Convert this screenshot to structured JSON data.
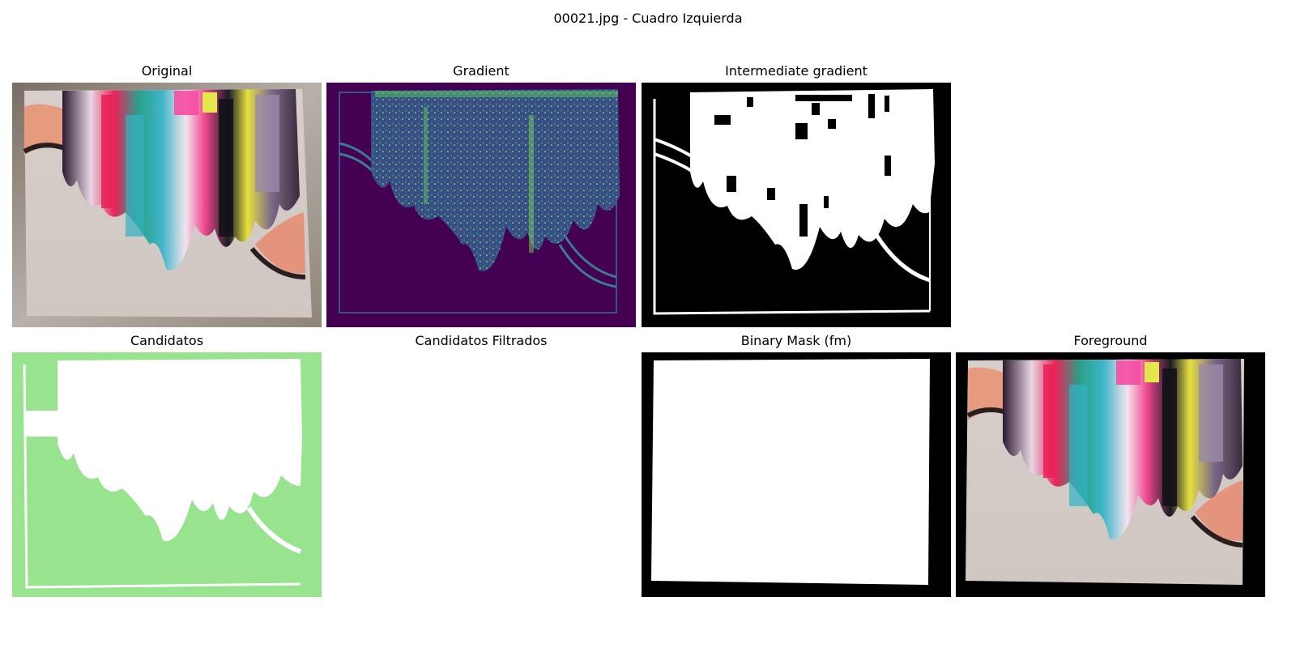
{
  "figure": {
    "suptitle": "00021.jpg - Cuadro Izquierda"
  },
  "panels": [
    {
      "id": "original",
      "title": "Original"
    },
    {
      "id": "gradient",
      "title": "Gradient"
    },
    {
      "id": "intermediate",
      "title": "Intermediate gradient"
    },
    {
      "id": "candidatos",
      "title": "Candidatos"
    },
    {
      "id": "filtrados",
      "title": "Candidatos Filtrados"
    },
    {
      "id": "binary",
      "title": "Binary Mask (fm)"
    },
    {
      "id": "foreground",
      "title": "Foreground"
    }
  ],
  "colors": {
    "viridis_dark": "#440154",
    "viridis_mid": "#21918c",
    "viridis_bright": "#5ec962",
    "candidate_green": "#98e38e",
    "mask_black": "#000000",
    "mask_white": "#ffffff"
  }
}
